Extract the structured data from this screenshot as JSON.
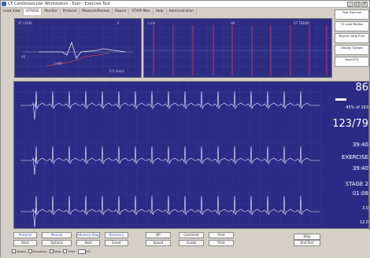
{
  "window": {
    "title": "CF Cardiovascular Workstation - Exer - Exercise Test"
  },
  "menu": {
    "items": [
      "Lead View",
      "STRESS",
      "Monitor",
      "Protocol",
      "Measure/Review",
      "Report",
      "ST/HR Mon",
      "Help",
      "Administration"
    ],
    "active_index": 1
  },
  "side_buttons": [
    {
      "label": "Post Exercise"
    },
    {
      "label": "12 Lead Median"
    },
    {
      "label": "Rhythm Strip Print"
    },
    {
      "label": "Display Options"
    },
    {
      "label": "Hold ECG"
    }
  ],
  "panel_a": {
    "labels": [
      "ST LEVEL",
      "II",
      "V5",
      "J+60",
      "0.5 mm/s"
    ]
  },
  "panel_b": {
    "labels": [
      "1 mV",
      "HR",
      "ST TREND"
    ]
  },
  "vitals": {
    "heart_rate": "86",
    "percent_target": "45% of 163",
    "bp": "123/79",
    "exercise_time_label": "EXERCISE",
    "exercise_time": "39:40",
    "stage_label": "STAGE 2",
    "stage_time": "01:08",
    "total_time": "39:40",
    "speed": "3.0",
    "grade": "12.0"
  },
  "bottom_buttons": {
    "row1": [
      "Protocol",
      "Manual",
      "Advance Stage",
      "Recovery",
      "BP",
      "Comment",
      "Print"
    ],
    "row2": [
      "Start",
      "Options",
      "Hold",
      "Event",
      "Speed",
      "Grade",
      "Print",
      "Stop",
      "End Test"
    ]
  },
  "status_row": {
    "items": [
      "Speed",
      "Elevation",
      "Step",
      "Time",
      "0.0"
    ]
  },
  "colors": {
    "panel": "#2c2c82",
    "trace": "#f0f0ff",
    "grid": "#b04c9a",
    "grid_main": "#3c3c9a"
  }
}
